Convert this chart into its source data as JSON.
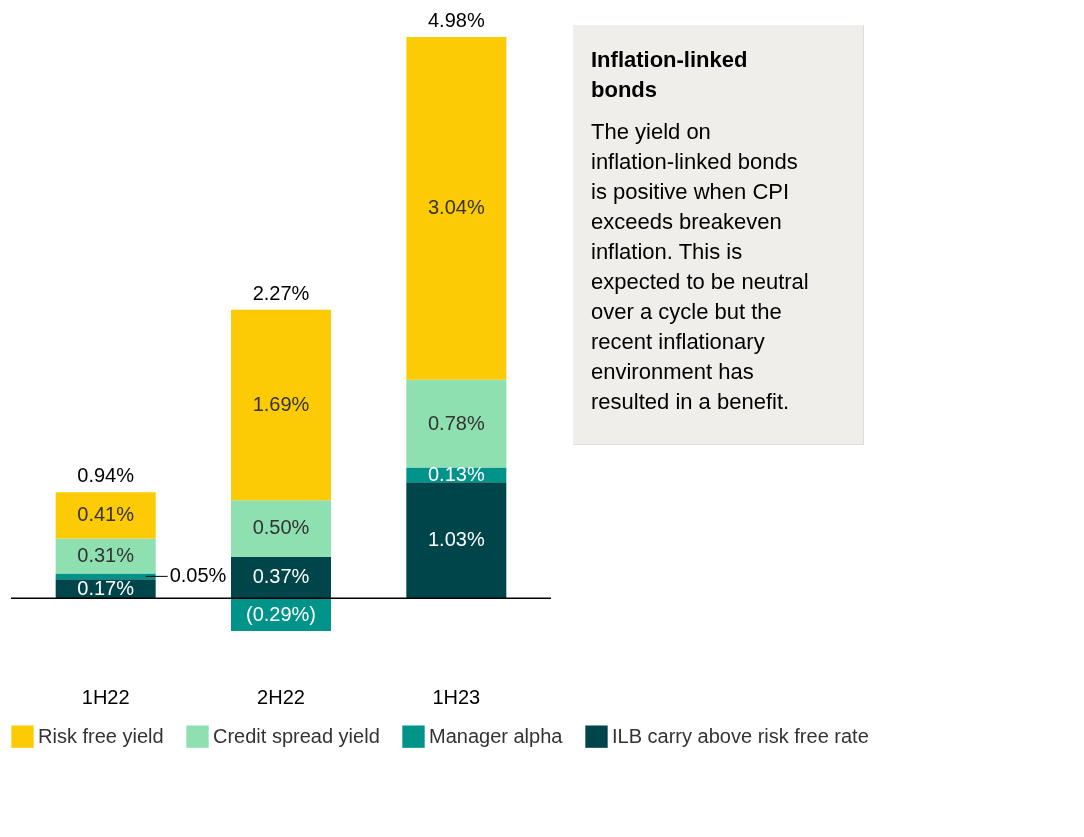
{
  "chart_data": {
    "type": "bar",
    "stacked": true,
    "categories": [
      "1H22",
      "2H22",
      "1H23"
    ],
    "series": [
      {
        "name": "ILB carry above risk free rate",
        "color": "#00454a",
        "values": [
          0.17,
          0.37,
          1.03
        ],
        "value_labels": [
          "0.17%",
          "0.37%",
          "1.03%"
        ]
      },
      {
        "name": "Manager alpha",
        "color": "#00938a",
        "values": [
          0.05,
          -0.29,
          0.13
        ],
        "value_labels": [
          "0.05%",
          "(0.29%)",
          "0.13%"
        ]
      },
      {
        "name": "Credit spread yield",
        "color": "#8fe0b0",
        "values": [
          0.31,
          0.5,
          0.78
        ],
        "value_labels": [
          "0.31%",
          "0.50%",
          "0.78%"
        ]
      },
      {
        "name": "Risk free yield",
        "color": "#fccb05",
        "values": [
          0.41,
          1.69,
          3.04
        ],
        "value_labels": [
          "0.41%",
          "1.69%",
          "3.04%"
        ]
      }
    ],
    "totals": [
      "0.94%",
      "2.27%",
      "4.98%"
    ],
    "legend": "bottom",
    "grid": false,
    "annotations": [
      "Inflation-linked bonds",
      "The yield on inflation-linked bonds is positive when CPI exceeds breakeven inflation. This is expected to be neutral over a cycle but the recent inflationary environment has resulted in a benefit."
    ]
  }
}
